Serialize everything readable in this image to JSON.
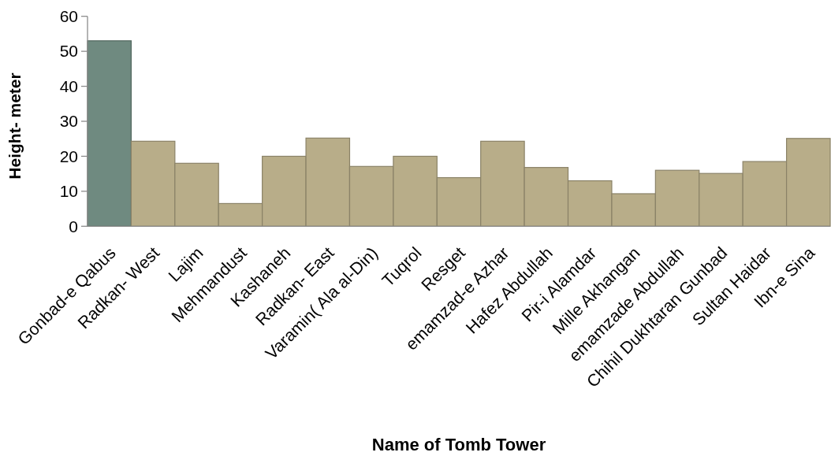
{
  "chart_data": {
    "type": "bar",
    "xlabel": "Name of Tomb Tower",
    "ylabel": "Height- meter",
    "categories": [
      "Gonbad-e Qabus",
      "Radkan- West",
      "Lajim",
      "Mehmandust",
      "Kashaneh",
      "Radkan- East",
      "Varamin( Ala al-Din)",
      "Tuqrol",
      "Resget",
      "emamzad-e Azhar",
      "Hafez Abdullah",
      "Pir-i Alamdar",
      "Mille Akhangan",
      "emamzade Abdullah",
      "Chihil Dukhtaran Gunbad",
      "Sultan Haidar",
      "Ibn-e Sina"
    ],
    "values": [
      53,
      24.3,
      18,
      6.5,
      20,
      25.2,
      17.1,
      20,
      13.9,
      24.3,
      16.8,
      13,
      9.3,
      16,
      15.1,
      18.5,
      25.1
    ],
    "colors": [
      "#6f8a80",
      "#b8ad89",
      "#b8ad89",
      "#b8ad89",
      "#b8ad89",
      "#b8ad89",
      "#b8ad89",
      "#b8ad89",
      "#b8ad89",
      "#b8ad89",
      "#b8ad89",
      "#b8ad89",
      "#b8ad89",
      "#b8ad89",
      "#b8ad89",
      "#b8ad89",
      "#b8ad89"
    ],
    "ylim": [
      0,
      60
    ],
    "yticks": [
      0,
      10,
      20,
      30,
      40,
      50,
      60
    ]
  }
}
